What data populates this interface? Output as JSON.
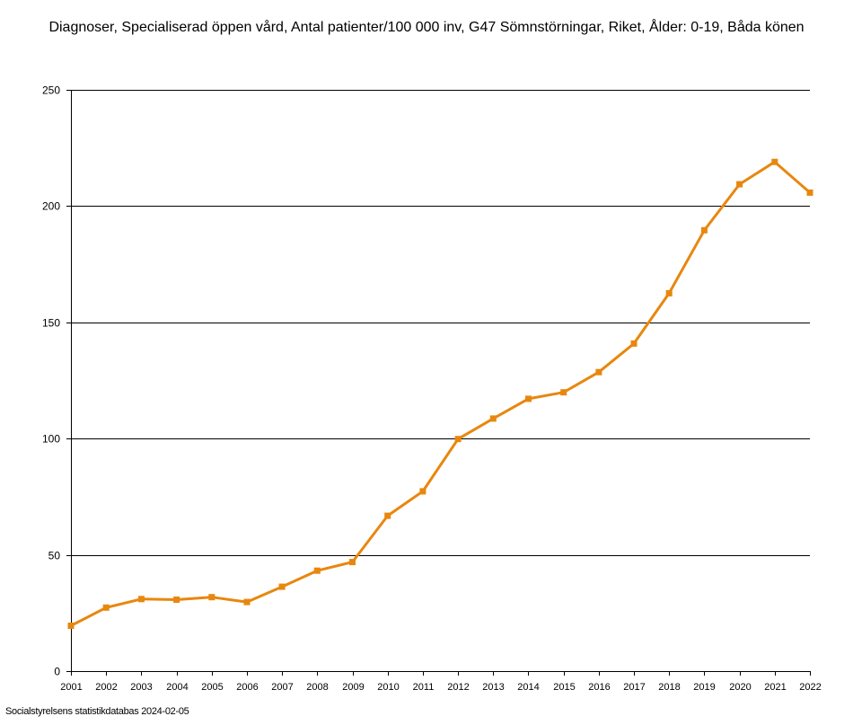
{
  "chart_data": {
    "type": "line",
    "title": "Diagnoser, Specialiserad öppen vård, Antal patienter/100 000 inv, G47 Sömnstörningar, Riket, Ålder: 0-19, Båda könen",
    "xlabel": "",
    "ylabel": "",
    "x": [
      "2001",
      "2002",
      "2003",
      "2004",
      "2005",
      "2006",
      "2007",
      "2008",
      "2009",
      "2010",
      "2011",
      "2012",
      "2013",
      "2014",
      "2015",
      "2016",
      "2017",
      "2018",
      "2019",
      "2020",
      "2021",
      "2022"
    ],
    "series": [
      {
        "values": [
          19.5,
          27.3,
          31.0,
          30.7,
          31.8,
          29.7,
          36.3,
          43.2,
          46.9,
          66.8,
          77.3,
          99.8,
          108.6,
          117.1,
          119.9,
          128.6,
          140.9,
          162.5,
          189.6,
          209.4,
          219.0,
          205.8
        ],
        "color": "#e8870e"
      }
    ],
    "ylim": [
      0,
      250
    ],
    "yticks": [
      0,
      50,
      100,
      150,
      200,
      250
    ],
    "grid": true,
    "legend": "none"
  },
  "footer": {
    "source": "Socialstyrelsens statistikdatabas 2024-02-05"
  }
}
